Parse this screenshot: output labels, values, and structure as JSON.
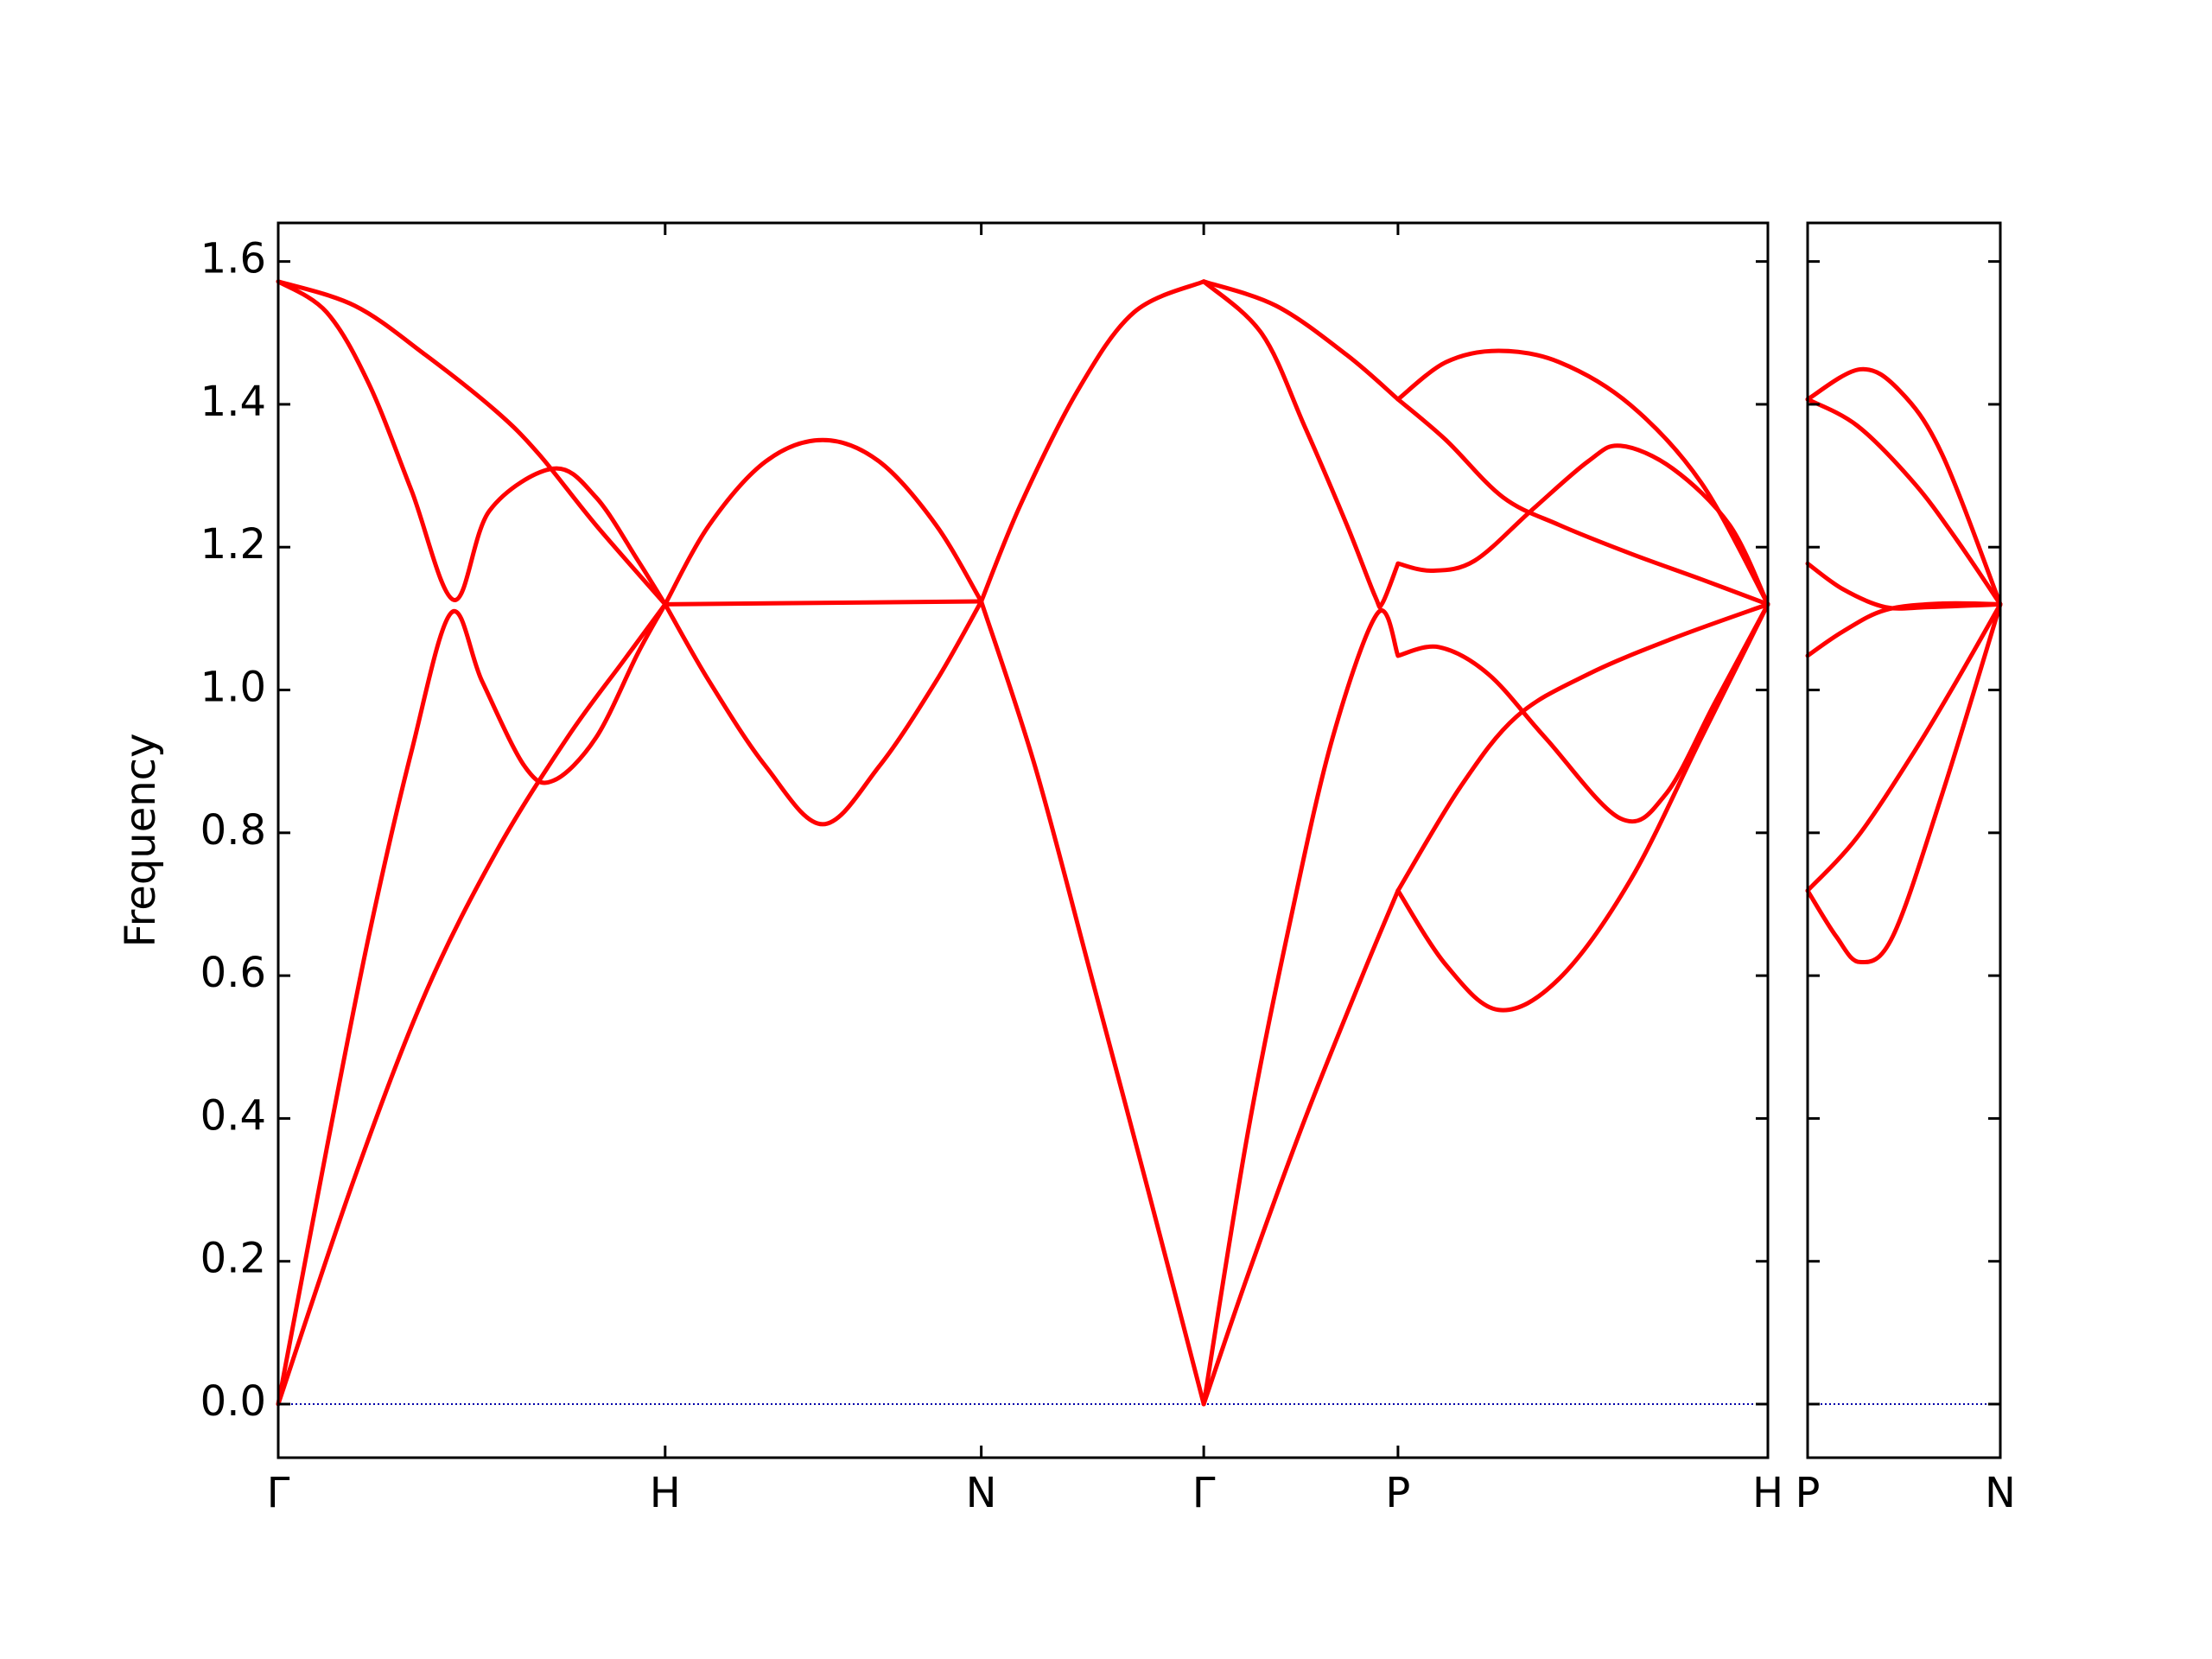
{
  "chart_data": [
    {
      "type": "line",
      "ylabel": "Frequency",
      "xlim": [
        0,
        3.85
      ],
      "ylim": [
        -0.075,
        1.654
      ],
      "xticks": [
        {
          "value": 0,
          "label": "Γ"
        },
        {
          "value": 1,
          "label": "H"
        },
        {
          "value": 1.817,
          "label": "N"
        },
        {
          "value": 2.392,
          "label": "Γ"
        },
        {
          "value": 2.894,
          "label": "P"
        },
        {
          "value": 3.85,
          "label": "H"
        }
      ],
      "yticks": [
        {
          "value": 0,
          "label": "0.0"
        },
        0.2,
        0.4,
        0.6,
        0.8,
        {
          "value": 1,
          "label": "1.0"
        },
        1.2,
        1.4,
        1.6
      ],
      "zero_line_color": "#0000aa",
      "series": [
        {
          "color": "#ff0000",
          "x": [
            0,
            0.198,
            0.381,
            0.564,
            0.674,
            0.821,
            1
          ],
          "values": [
            1.572,
            1.538,
            1.469,
            1.39,
            1.33,
            1.231,
            1.12
          ]
        },
        {
          "color": "#ff0000",
          "x": [
            0,
            0.125,
            0.234,
            0.344,
            0.454,
            0.546,
            0.711,
            0.821,
            0.93,
            1
          ],
          "values": [
            1.572,
            1.529,
            1.429,
            1.28,
            1.126,
            1.251,
            1.31,
            1.27,
            1.181,
            1.12
          ]
        },
        {
          "color": "#ff0000",
          "x": [
            0,
            0.125,
            0.234,
            0.344,
            0.447,
            0.527,
            0.637,
            0.711,
            0.821,
            0.93,
            1
          ],
          "values": [
            0,
            0.357,
            0.655,
            0.913,
            1.108,
            1.012,
            0.893,
            0.873,
            0.933,
            1.052,
            1.12
          ]
        },
        {
          "color": "#ff0000",
          "x": [
            0,
            0.198,
            0.381,
            0.564,
            0.747,
            0.894,
            1
          ],
          "values": [
            0,
            0.318,
            0.576,
            0.774,
            0.933,
            1.042,
            1.12
          ]
        },
        {
          "color": "#ff0000",
          "x": [
            1,
            1.114,
            1.26,
            1.407,
            1.553,
            1.7,
            1.817
          ],
          "values": [
            1.12,
            1.231,
            1.32,
            1.35,
            1.32,
            1.231,
            1.124
          ]
        },
        {
          "color": "#ff0000",
          "x": [
            1,
            1.114,
            1.26,
            1.407,
            1.553,
            1.7,
            1.817
          ],
          "values": [
            1.12,
            1.012,
            0.893,
            0.812,
            0.893,
            1.012,
            1.124
          ]
        },
        {
          "color": "#ff0000",
          "x": [
            1,
            1.817
          ],
          "values": [
            1.12,
            1.124
          ]
        },
        {
          "color": "#ff0000",
          "x": [
            1.817,
            1.919,
            2.066,
            2.212,
            2.392
          ],
          "values": [
            1.124,
            1.26,
            1.419,
            1.529,
            1.572
          ]
        },
        {
          "color": "#ff0000",
          "x": [
            1.817,
            1.956,
            2.103,
            2.249,
            2.392
          ],
          "values": [
            1.124,
            0.893,
            0.596,
            0.298,
            0
          ]
        },
        {
          "color": "#ff0000",
          "x": [
            2.392,
            2.579,
            2.762,
            2.894
          ],
          "values": [
            1.572,
            1.538,
            1.469,
            1.407
          ]
        },
        {
          "color": "#ff0000",
          "x": [
            2.392,
            2.542,
            2.652,
            2.762,
            2.835,
            2.853,
            2.894
          ],
          "values": [
            1.572,
            1.499,
            1.37,
            1.231,
            1.131,
            1.121,
            1.177
          ]
        },
        {
          "color": "#ff0000",
          "x": [
            2.392,
            2.505,
            2.615,
            2.725,
            2.842,
            2.894
          ],
          "values": [
            0,
            0.377,
            0.675,
            0.933,
            1.108,
            1.048
          ]
        },
        {
          "color": "#ff0000",
          "x": [
            2.392,
            2.505,
            2.652,
            2.799,
            2.894
          ],
          "values": [
            0,
            0.179,
            0.397,
            0.596,
            0.719
          ]
        },
        {
          "color": "#ff0000",
          "x": [
            2.894,
            3.018,
            3.154,
            3.311,
            3.495,
            3.678,
            3.85
          ],
          "values": [
            1.407,
            1.459,
            1.475,
            1.459,
            1.399,
            1.29,
            1.12
          ]
        },
        {
          "color": "#ff0000",
          "x": [
            2.894,
            3.018,
            3.165,
            3.311,
            3.495,
            3.678,
            3.85
          ],
          "values": [
            1.407,
            1.35,
            1.27,
            1.231,
            1.191,
            1.155,
            1.12
          ]
        },
        {
          "color": "#ff0000",
          "x": [
            2.894,
            2.982,
            3.092,
            3.238,
            3.385,
            3.469,
            3.604,
            3.751,
            3.85
          ],
          "values": [
            1.177,
            1.167,
            1.181,
            1.251,
            1.32,
            1.342,
            1.31,
            1.231,
            1.12
          ]
        },
        {
          "color": "#ff0000",
          "x": [
            2.894,
            3.0,
            3.128,
            3.275,
            3.469,
            3.586,
            3.714,
            3.85
          ],
          "values": [
            1.048,
            1.06,
            1.022,
            0.933,
            0.82,
            0.854,
            0.983,
            1.12
          ]
        },
        {
          "color": "#ff0000",
          "x": [
            2.894,
            3.055,
            3.201,
            3.385,
            3.604,
            3.85
          ],
          "values": [
            0.719,
            0.864,
            0.963,
            1.022,
            1.072,
            1.12
          ]
        },
        {
          "color": "#ff0000",
          "x": [
            2.894,
            3.018,
            3.154,
            3.311,
            3.495,
            3.678,
            3.85
          ],
          "values": [
            0.719,
            0.615,
            0.552,
            0.596,
            0.734,
            0.933,
            1.12
          ]
        }
      ]
    },
    {
      "type": "line",
      "xlim": [
        0,
        0.5
      ],
      "ylim": [
        -0.075,
        1.654
      ],
      "xticks": [
        {
          "value": 0,
          "label": "P"
        },
        {
          "value": 0.5,
          "label": "N"
        }
      ],
      "yticks": [
        0,
        0.2,
        0.4,
        0.6,
        0.8,
        1,
        1.2,
        1.4,
        1.6
      ],
      "zero_line_color": "#0000aa",
      "series": [
        {
          "color": "#ff0000",
          "x": [
            0,
            0.136,
            0.239,
            0.349,
            0.5
          ],
          "values": [
            1.407,
            1.449,
            1.419,
            1.33,
            1.12
          ]
        },
        {
          "color": "#ff0000",
          "x": [
            0,
            0.129,
            0.276,
            0.386,
            0.5
          ],
          "values": [
            1.407,
            1.37,
            1.29,
            1.211,
            1.12
          ]
        },
        {
          "color": "#ff0000",
          "x": [
            0,
            0.092,
            0.202,
            0.313,
            0.5
          ],
          "values": [
            1.177,
            1.141,
            1.116,
            1.116,
            1.12
          ]
        },
        {
          "color": "#ff0000",
          "x": [
            0,
            0.092,
            0.202,
            0.349,
            0.5
          ],
          "values": [
            1.048,
            1.082,
            1.112,
            1.121,
            1.12
          ]
        },
        {
          "color": "#ff0000",
          "x": [
            0,
            0.129,
            0.276,
            0.386,
            0.5
          ],
          "values": [
            0.719,
            0.794,
            0.913,
            1.012,
            1.12
          ]
        },
        {
          "color": "#ff0000",
          "x": [
            0,
            0.074,
            0.136,
            0.221,
            0.349,
            0.5
          ],
          "values": [
            0.719,
            0.655,
            0.619,
            0.655,
            0.854,
            1.12
          ]
        }
      ]
    }
  ]
}
